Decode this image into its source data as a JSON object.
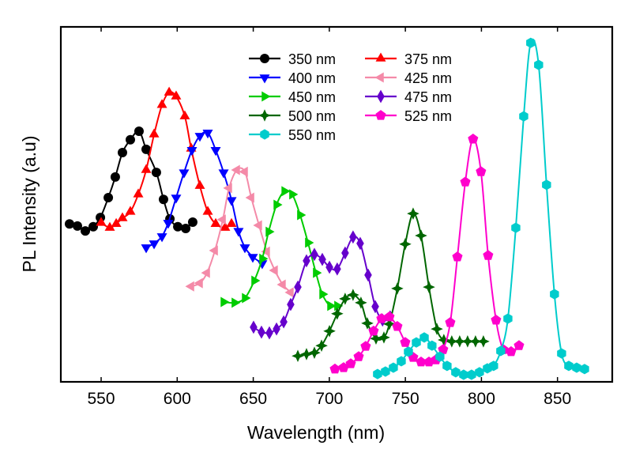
{
  "chart_data": {
    "type": "line",
    "title": "",
    "xlabel": "Wavelength (nm)",
    "ylabel": "PL Intensity (a.u)",
    "xlim": [
      523.5,
      886
    ],
    "ylim": [
      0,
      1
    ],
    "x_ticks": [
      550,
      600,
      650,
      700,
      750,
      800,
      850
    ],
    "y_ticks": [],
    "grid": false,
    "legend_position": "top-center",
    "legend_columns": 2,
    "series": [
      {
        "name": "350 nm",
        "color": "#000000",
        "marker": "circle",
        "x": [
          529.2,
          534.4,
          539.6,
          544.8,
          549.5,
          554.7,
          559.3,
          564.0,
          569.2,
          574.9,
          579.6,
          586.3,
          591.0,
          595.2,
          600.4,
          605.6,
          610.2
        ],
        "y": [
          0.445,
          0.439,
          0.425,
          0.437,
          0.463,
          0.519,
          0.577,
          0.646,
          0.682,
          0.706,
          0.655,
          0.59,
          0.514,
          0.459,
          0.437,
          0.432,
          0.45
        ]
      },
      {
        "name": "375 nm",
        "color": "#ff0000",
        "marker": "triangle-up",
        "x": [
          550.0,
          555.7,
          559.9,
          564.0,
          569.2,
          574.4,
          579.6,
          584.8,
          590.0,
          594.7,
          599.3,
          605.0,
          609.2,
          614.9,
          620.1,
          625.3,
          631.5,
          635.7
        ],
        "y": [
          0.448,
          0.434,
          0.445,
          0.461,
          0.479,
          0.528,
          0.597,
          0.697,
          0.78,
          0.815,
          0.804,
          0.748,
          0.657,
          0.552,
          0.479,
          0.445,
          0.434,
          0.445
        ]
      },
      {
        "name": "400 nm",
        "color": "#0000ff",
        "marker": "triangle-down",
        "x": [
          579.6,
          584.8,
          590.0,
          594.1,
          599.3,
          604.5,
          609.7,
          614.9,
          620.1,
          625.3,
          630.5,
          635.7,
          640.3,
          644.5,
          649.7,
          655.9
        ],
        "y": [
          0.379,
          0.39,
          0.41,
          0.448,
          0.519,
          0.59,
          0.653,
          0.693,
          0.702,
          0.653,
          0.59,
          0.512,
          0.425,
          0.379,
          0.352,
          0.334
        ]
      },
      {
        "name": "425 nm",
        "color": "#f48aa8",
        "marker": "triangle-left",
        "x": [
          609.2,
          614.9,
          619.6,
          624.8,
          630.0,
          634.1,
          639.3,
          644.5,
          648.7,
          653.8,
          659.0,
          664.2,
          669.4,
          674.6
        ],
        "y": [
          0.269,
          0.278,
          0.307,
          0.37,
          0.457,
          0.546,
          0.597,
          0.592,
          0.519,
          0.441,
          0.367,
          0.314,
          0.274,
          0.252
        ]
      },
      {
        "name": "450 nm",
        "color": "#00cc00",
        "marker": "triangle-right",
        "x": [
          630.5,
          637.7,
          644.5,
          650.7,
          655.9,
          660.1,
          665.3,
          670.5,
          675.6,
          680.8,
          686.0,
          691.2,
          695.4,
          700.6,
          705.2
        ],
        "y": [
          0.225,
          0.223,
          0.236,
          0.285,
          0.347,
          0.423,
          0.499,
          0.537,
          0.528,
          0.47,
          0.392,
          0.307,
          0.247,
          0.214,
          0.214
        ]
      },
      {
        "name": "475 nm",
        "color": "#6600cc",
        "marker": "diamond",
        "x": [
          650.2,
          655.4,
          660.6,
          665.3,
          670.0,
          674.6,
          679.3,
          685.0,
          690.2,
          695.4,
          700.1,
          705.2,
          710.4,
          715.6,
          720.3,
          725.5,
          730.2,
          735.0,
          740.0
        ],
        "y": [
          0.154,
          0.14,
          0.138,
          0.149,
          0.169,
          0.218,
          0.267,
          0.341,
          0.359,
          0.345,
          0.323,
          0.318,
          0.363,
          0.408,
          0.39,
          0.301,
          0.212,
          0.174,
          0.183
        ]
      },
      {
        "name": "500 nm",
        "color": "#006600",
        "marker": "star4",
        "x": [
          679.3,
          685.0,
          690.2,
          694.9,
          700.1,
          705.2,
          710.4,
          715.6,
          720.8,
          725.0,
          730.7,
          735.9,
          739.5,
          744.7,
          749.9,
          755.1,
          760.3,
          765.5,
          770.7,
          775.3,
          780.5,
          785.7,
          790.9,
          796.1,
          801.3
        ],
        "y": [
          0.073,
          0.078,
          0.082,
          0.102,
          0.143,
          0.192,
          0.234,
          0.245,
          0.223,
          0.165,
          0.122,
          0.125,
          0.163,
          0.263,
          0.388,
          0.474,
          0.412,
          0.267,
          0.149,
          0.118,
          0.114,
          0.114,
          0.114,
          0.114,
          0.114
        ]
      },
      {
        "name": "525 nm",
        "color": "#ff00cc",
        "marker": "pentagon",
        "x": [
          703.7,
          709.4,
          714.1,
          719.3,
          723.9,
          729.1,
          734.3,
          739.5,
          744.7,
          749.9,
          755.1,
          760.3,
          765.5,
          770.1,
          774.8,
          779.5,
          784.2,
          789.4,
          794.5,
          799.7,
          804.4,
          809.6,
          814.3,
          819.5,
          824.7
        ],
        "y": [
          0.036,
          0.04,
          0.051,
          0.071,
          0.1,
          0.143,
          0.178,
          0.183,
          0.156,
          0.111,
          0.069,
          0.056,
          0.056,
          0.062,
          0.091,
          0.167,
          0.352,
          0.563,
          0.684,
          0.592,
          0.356,
          0.174,
          0.091,
          0.085,
          0.102
        ]
      },
      {
        "name": "550 nm",
        "color": "#00cccc",
        "marker": "hexagon",
        "x": [
          731.7,
          736.9,
          742.1,
          747.3,
          752.0,
          757.2,
          762.4,
          767.5,
          772.7,
          777.4,
          783.1,
          788.3,
          793.5,
          798.7,
          803.9,
          808.0,
          812.7,
          817.4,
          822.6,
          827.8,
          832.4,
          837.6,
          842.8,
          848.0,
          852.7,
          857.4,
          862.6,
          867.8
        ],
        "y": [
          0.022,
          0.029,
          0.04,
          0.058,
          0.085,
          0.111,
          0.125,
          0.102,
          0.071,
          0.045,
          0.027,
          0.02,
          0.02,
          0.027,
          0.038,
          0.045,
          0.087,
          0.178,
          0.434,
          0.748,
          0.955,
          0.893,
          0.555,
          0.247,
          0.08,
          0.045,
          0.04,
          0.036
        ]
      }
    ]
  }
}
